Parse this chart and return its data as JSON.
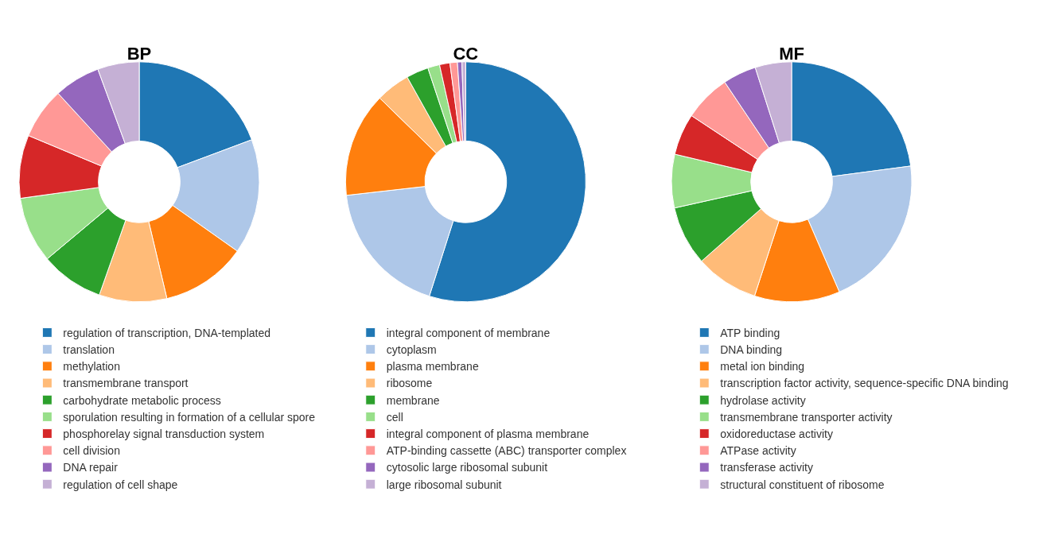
{
  "chart_data": [
    {
      "type": "donut",
      "title": "BP",
      "legend": "bottom",
      "categories": [
        "regulation of transcription, DNA-templated",
        "translation",
        "methylation",
        "transmembrane transport",
        "carbohydrate metabolic process",
        "sporulation resulting in formation of a cellular spore",
        "phosphorelay signal transduction system",
        "cell division",
        "DNA repair",
        "regulation of cell shape"
      ],
      "values": [
        19.3,
        15.5,
        11.5,
        9.1,
        8.5,
        8.9,
        8.5,
        6.9,
        6.2,
        5.6
      ],
      "colors": [
        "#1f77b4",
        "#aec7e8",
        "#ff7f0e",
        "#ffbb78",
        "#2ca02c",
        "#98df8a",
        "#d62728",
        "#ff9896",
        "#9467bd",
        "#c5b0d5"
      ]
    },
    {
      "type": "donut",
      "title": "CC",
      "legend": "bottom",
      "categories": [
        "integral component of membrane",
        "cytoplasm",
        "plasma membrane",
        "ribosome",
        "membrane",
        "cell",
        "integral component of plasma membrane",
        "ATP-binding cassette (ABC) transporter complex",
        "cytosolic large ribosomal subunit",
        "large ribosomal subunit"
      ],
      "values": [
        54.9,
        18.3,
        14.1,
        4.6,
        3.0,
        1.6,
        1.4,
        1.0,
        0.6,
        0.5
      ],
      "colors": [
        "#1f77b4",
        "#aec7e8",
        "#ff7f0e",
        "#ffbb78",
        "#2ca02c",
        "#98df8a",
        "#d62728",
        "#ff9896",
        "#9467bd",
        "#c5b0d5"
      ]
    },
    {
      "type": "donut",
      "title": "MF",
      "legend": "bottom",
      "categories": [
        "ATP binding",
        "DNA binding",
        "metal ion binding",
        "transcription factor activity, sequence-specific DNA binding",
        "hydrolase activity",
        "transmembrane transporter activity",
        "oxidoreductase activity",
        "ATPase activity",
        "transferase activity",
        "structural constituent of ribosome"
      ],
      "values": [
        22.9,
        20.6,
        11.5,
        8.5,
        8.0,
        7.2,
        5.6,
        6.3,
        4.5,
        4.9
      ],
      "colors": [
        "#1f77b4",
        "#aec7e8",
        "#ff7f0e",
        "#ffbb78",
        "#2ca02c",
        "#98df8a",
        "#d62728",
        "#ff9896",
        "#9467bd",
        "#c5b0d5"
      ]
    }
  ]
}
